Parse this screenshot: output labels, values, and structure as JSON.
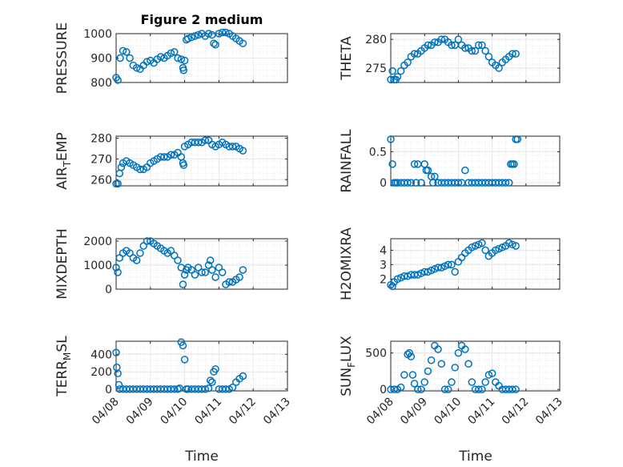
{
  "figure": {
    "title": "Figure 2 medium",
    "xlabel": "Time",
    "x_tick_labels": [
      "04/08",
      "04/09",
      "04/10",
      "04/11",
      "04/12",
      "04/13"
    ],
    "marker_color": "#0072BD",
    "axis_color": "#262626",
    "grid_color": "#E6E6E6"
  },
  "chart_data": [
    {
      "type": "scatter",
      "ylabel": "PRESSURE",
      "ylabel_sub": "",
      "ylim": [
        800,
        1000
      ],
      "yticks": [
        800,
        900,
        1000
      ],
      "xlim": [
        0,
        5
      ],
      "x": [
        0.0,
        0.05,
        0.12,
        0.2,
        0.3,
        0.4,
        0.5,
        0.6,
        0.7,
        0.8,
        0.9,
        1.0,
        1.1,
        1.2,
        1.3,
        1.4,
        1.5,
        1.6,
        1.7,
        1.8,
        1.9,
        1.95,
        1.97,
        2.0,
        2.05,
        2.1,
        2.2,
        2.3,
        2.4,
        2.5,
        2.6,
        2.7,
        2.8,
        2.85,
        2.9,
        3.0,
        3.1,
        3.2,
        3.3,
        3.4,
        3.5,
        3.6,
        3.7
      ],
      "y": [
        820,
        810,
        900,
        930,
        925,
        900,
        870,
        860,
        855,
        870,
        885,
        890,
        880,
        895,
        905,
        900,
        910,
        920,
        925,
        900,
        895,
        860,
        850,
        890,
        975,
        980,
        985,
        990,
        995,
        1000,
        990,
        1000,
        995,
        960,
        955,
        1000,
        1005,
        1005,
        1000,
        990,
        980,
        970,
        960
      ]
    },
    {
      "type": "scatter",
      "ylabel": "THETA",
      "ylabel_sub": "",
      "ylim": [
        272.5,
        281
      ],
      "yticks": [
        275,
        280
      ],
      "xlim": [
        0,
        5
      ],
      "x": [
        0.0,
        0.05,
        0.1,
        0.15,
        0.2,
        0.3,
        0.4,
        0.5,
        0.6,
        0.7,
        0.8,
        0.9,
        1.0,
        1.1,
        1.2,
        1.3,
        1.4,
        1.5,
        1.6,
        1.7,
        1.8,
        1.9,
        2.0,
        2.1,
        2.2,
        2.3,
        2.4,
        2.5,
        2.6,
        2.7,
        2.8,
        2.9,
        3.0,
        3.1,
        3.2,
        3.3,
        3.4,
        3.5,
        3.6,
        3.7
      ],
      "y": [
        273.0,
        274.5,
        273.0,
        273.0,
        273.5,
        274.5,
        275.5,
        276.0,
        277.0,
        277.5,
        277.5,
        278.0,
        278.5,
        279.0,
        279.0,
        279.5,
        279.5,
        280.0,
        280.0,
        279.5,
        279.0,
        279.0,
        280.0,
        279.0,
        278.5,
        278.5,
        278.0,
        278.0,
        279.0,
        279.0,
        278.0,
        277.0,
        276.0,
        275.5,
        275.0,
        276.0,
        276.5,
        277.0,
        277.5,
        277.5
      ]
    },
    {
      "type": "scatter",
      "ylabel": "AIR",
      "ylabel_sub": "T",
      "ylabel_end": "EMP",
      "ylim": [
        257,
        281
      ],
      "yticks": [
        260,
        270,
        280
      ],
      "xlim": [
        0,
        5
      ],
      "x": [
        0.0,
        0.05,
        0.1,
        0.15,
        0.2,
        0.3,
        0.4,
        0.5,
        0.6,
        0.7,
        0.8,
        0.9,
        1.0,
        1.1,
        1.2,
        1.3,
        1.4,
        1.5,
        1.6,
        1.7,
        1.8,
        1.9,
        1.95,
        1.97,
        2.0,
        2.1,
        2.2,
        2.3,
        2.4,
        2.5,
        2.6,
        2.7,
        2.8,
        2.9,
        3.0,
        3.1,
        3.2,
        3.3,
        3.4,
        3.5,
        3.6,
        3.7
      ],
      "y": [
        258,
        258,
        263,
        266,
        268,
        269,
        268,
        267,
        266,
        265,
        265,
        266,
        268,
        269,
        270,
        271,
        271,
        271,
        272,
        272,
        273,
        271,
        268,
        267,
        276,
        277,
        278,
        278,
        278,
        278,
        279,
        279,
        277,
        276,
        277,
        278,
        277,
        276,
        276,
        276,
        275,
        274
      ]
    },
    {
      "type": "scatter",
      "ylabel": "RAINFALL",
      "ylabel_sub": "",
      "ylim": [
        -0.05,
        0.75
      ],
      "yticks": [
        0,
        0.5
      ],
      "xlim": [
        0,
        5
      ],
      "x": [
        0.0,
        0.05,
        0.1,
        0.15,
        0.2,
        0.3,
        0.4,
        0.5,
        0.6,
        0.7,
        0.75,
        0.8,
        0.9,
        1.0,
        1.05,
        1.1,
        1.2,
        1.25,
        1.3,
        1.4,
        1.5,
        1.6,
        1.7,
        1.8,
        1.9,
        2.0,
        2.1,
        2.2,
        2.3,
        2.4,
        2.5,
        2.6,
        2.7,
        2.8,
        2.9,
        3.0,
        3.1,
        3.2,
        3.3,
        3.4,
        3.5,
        3.55,
        3.6,
        3.65,
        3.7,
        3.75
      ],
      "y": [
        0.7,
        0.3,
        0,
        0,
        0,
        0,
        0,
        0,
        0,
        0.3,
        0,
        0.3,
        0,
        0.3,
        0.2,
        0.2,
        0.1,
        0,
        0.1,
        0,
        0,
        0,
        0,
        0,
        0,
        0,
        0,
        0.2,
        0,
        0,
        0,
        0,
        0,
        0,
        0,
        0,
        0,
        0,
        0,
        0,
        0,
        0.3,
        0.3,
        0.3,
        0.7,
        0.7
      ]
    },
    {
      "type": "scatter",
      "ylabel": "MIXDEPTH",
      "ylabel_sub": "",
      "ylim": [
        0,
        2100
      ],
      "yticks": [
        0,
        1000,
        2000
      ],
      "xlim": [
        0,
        5
      ],
      "x": [
        0.0,
        0.05,
        0.1,
        0.2,
        0.3,
        0.4,
        0.5,
        0.6,
        0.7,
        0.8,
        0.9,
        1.0,
        1.1,
        1.2,
        1.3,
        1.4,
        1.5,
        1.6,
        1.7,
        1.8,
        1.9,
        1.95,
        2.0,
        2.05,
        2.1,
        2.2,
        2.3,
        2.4,
        2.5,
        2.6,
        2.7,
        2.75,
        2.8,
        2.9,
        3.0,
        3.1,
        3.2,
        3.3,
        3.4,
        3.5,
        3.6,
        3.7
      ],
      "y": [
        900,
        700,
        1300,
        1500,
        1600,
        1500,
        1300,
        1200,
        1500,
        1800,
        2000,
        2000,
        1900,
        1800,
        1700,
        1600,
        1500,
        1600,
        1400,
        1200,
        900,
        200,
        600,
        800,
        900,
        800,
        600,
        900,
        700,
        700,
        1000,
        1200,
        800,
        500,
        900,
        700,
        200,
        300,
        300,
        400,
        500,
        800
      ]
    },
    {
      "type": "scatter",
      "ylabel": "H2OMIXRA",
      "ylabel_sub": "",
      "ylim": [
        1.3,
        4.8
      ],
      "yticks": [
        2,
        3,
        4
      ],
      "xlim": [
        0,
        5
      ],
      "x": [
        0.0,
        0.05,
        0.1,
        0.2,
        0.3,
        0.4,
        0.5,
        0.6,
        0.7,
        0.8,
        0.9,
        1.0,
        1.1,
        1.2,
        1.3,
        1.4,
        1.5,
        1.6,
        1.7,
        1.8,
        1.9,
        2.0,
        2.1,
        2.2,
        2.3,
        2.4,
        2.5,
        2.6,
        2.7,
        2.8,
        2.9,
        3.0,
        3.1,
        3.2,
        3.3,
        3.4,
        3.5,
        3.6,
        3.7
      ],
      "y": [
        1.6,
        1.5,
        1.8,
        2.0,
        2.1,
        2.2,
        2.2,
        2.3,
        2.3,
        2.3,
        2.4,
        2.5,
        2.5,
        2.6,
        2.7,
        2.8,
        2.8,
        2.9,
        3.0,
        3.0,
        2.5,
        3.2,
        3.5,
        3.8,
        4.0,
        4.2,
        4.3,
        4.4,
        4.5,
        4.0,
        3.6,
        3.8,
        4.0,
        4.1,
        4.2,
        4.3,
        4.5,
        4.4,
        4.3
      ]
    },
    {
      "type": "scatter",
      "ylabel": "TERR",
      "ylabel_sub": "M",
      "ylabel_end": "SL",
      "ylim": [
        -20,
        550
      ],
      "yticks": [
        0,
        200,
        400
      ],
      "xlim": [
        0,
        5
      ],
      "x": [
        0.0,
        0.02,
        0.05,
        0.08,
        0.1,
        0.2,
        0.3,
        0.4,
        0.5,
        0.6,
        0.7,
        0.8,
        0.9,
        1.0,
        1.1,
        1.2,
        1.3,
        1.4,
        1.5,
        1.6,
        1.7,
        1.8,
        1.85,
        1.9,
        1.95,
        2.0,
        2.05,
        2.1,
        2.2,
        2.3,
        2.4,
        2.5,
        2.6,
        2.7,
        2.75,
        2.8,
        2.85,
        2.9,
        3.0,
        3.1,
        3.2,
        3.3,
        3.4,
        3.5,
        3.6,
        3.7
      ],
      "y": [
        420,
        250,
        180,
        50,
        0,
        0,
        0,
        0,
        0,
        0,
        0,
        0,
        0,
        0,
        0,
        0,
        0,
        0,
        0,
        0,
        0,
        0,
        10,
        540,
        500,
        340,
        0,
        0,
        0,
        0,
        0,
        0,
        0,
        10,
        100,
        80,
        200,
        230,
        0,
        0,
        0,
        0,
        20,
        80,
        120,
        150
      ]
    },
    {
      "type": "scatter",
      "ylabel": "SUN",
      "ylabel_sub": "F",
      "ylabel_end": "LUX",
      "ylim": [
        -20,
        660
      ],
      "yticks": [
        0,
        500
      ],
      "xlim": [
        0,
        5
      ],
      "x": [
        0.0,
        0.1,
        0.2,
        0.3,
        0.4,
        0.5,
        0.55,
        0.6,
        0.65,
        0.7,
        0.8,
        0.9,
        1.0,
        1.1,
        1.2,
        1.3,
        1.4,
        1.5,
        1.6,
        1.7,
        1.8,
        1.9,
        2.0,
        2.1,
        2.2,
        2.3,
        2.4,
        2.5,
        2.6,
        2.7,
        2.8,
        2.9,
        3.0,
        3.1,
        3.2,
        3.3,
        3.4,
        3.5,
        3.6,
        3.7
      ],
      "y": [
        0,
        0,
        0,
        30,
        200,
        480,
        500,
        450,
        200,
        80,
        0,
        0,
        100,
        250,
        400,
        600,
        550,
        350,
        0,
        0,
        100,
        300,
        500,
        600,
        550,
        350,
        100,
        0,
        0,
        0,
        100,
        200,
        220,
        100,
        50,
        0,
        0,
        0,
        0,
        0
      ]
    }
  ]
}
